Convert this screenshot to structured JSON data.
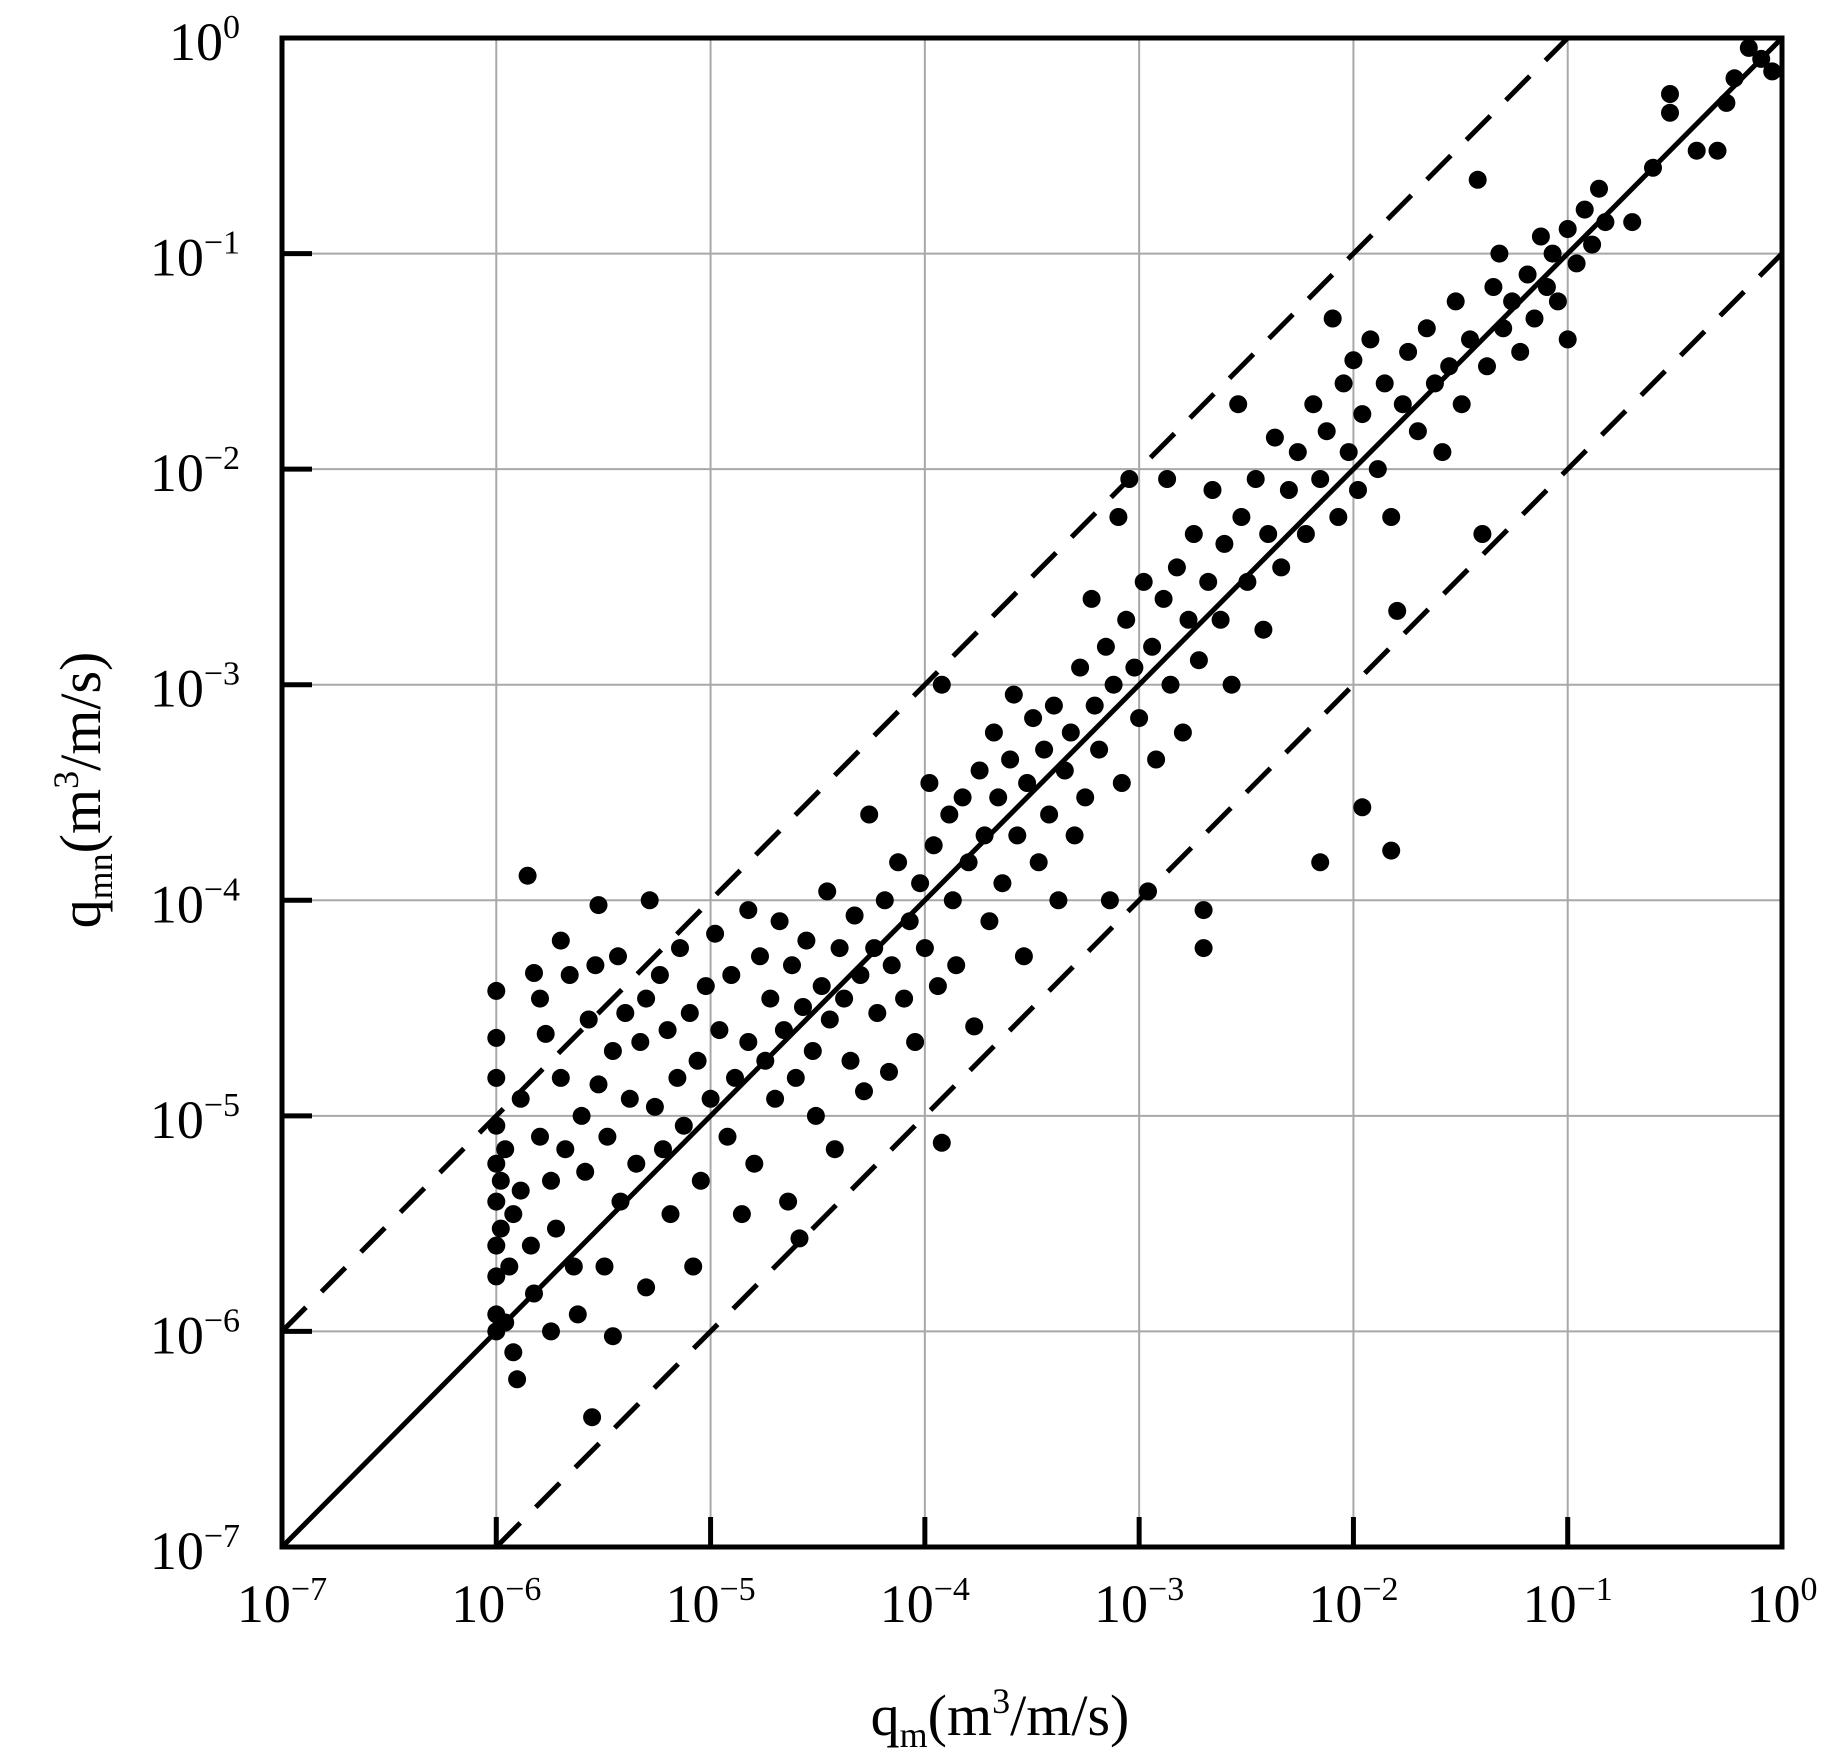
{
  "chart_data": {
    "type": "scatter",
    "title": "",
    "xlabel": {
      "base": "q",
      "subscript": "m",
      "unit_open": "(m",
      "unit_sup": "3",
      "unit_close": "/m/s)"
    },
    "ylabel": {
      "base": "q",
      "subscript": "mn",
      "unit_open": "(m",
      "unit_sup": "3",
      "unit_close": "/m/s)"
    },
    "x_scale": "log",
    "y_scale": "log",
    "xlim": [
      1e-07,
      1
    ],
    "ylim": [
      1e-07,
      1
    ],
    "grid": true,
    "legend": "none",
    "x_ticks": [
      {
        "value": 1e-07,
        "base": "10",
        "exp": "−7"
      },
      {
        "value": 1e-06,
        "base": "10",
        "exp": "−6"
      },
      {
        "value": 1e-05,
        "base": "10",
        "exp": "−5"
      },
      {
        "value": 0.0001,
        "base": "10",
        "exp": "−4"
      },
      {
        "value": 0.001,
        "base": "10",
        "exp": "−3"
      },
      {
        "value": 0.01,
        "base": "10",
        "exp": "−2"
      },
      {
        "value": 0.1,
        "base": "10",
        "exp": "−1"
      },
      {
        "value": 1,
        "base": "10",
        "exp": "0"
      }
    ],
    "y_ticks": [
      {
        "value": 1e-07,
        "base": "10",
        "exp": "−7"
      },
      {
        "value": 1e-06,
        "base": "10",
        "exp": "−6"
      },
      {
        "value": 1e-05,
        "base": "10",
        "exp": "−5"
      },
      {
        "value": 0.0001,
        "base": "10",
        "exp": "−4"
      },
      {
        "value": 0.001,
        "base": "10",
        "exp": "−3"
      },
      {
        "value": 0.01,
        "base": "10",
        "exp": "−2"
      },
      {
        "value": 0.1,
        "base": "10",
        "exp": "−1"
      },
      {
        "value": 1,
        "base": "10",
        "exp": "0"
      }
    ],
    "reference_lines": [
      {
        "style": "solid",
        "relation": "y = x"
      },
      {
        "style": "dashed",
        "relation": "y = 10x"
      },
      {
        "style": "dashed",
        "relation": "y = 0.1x"
      }
    ],
    "series": [
      {
        "marker": "filled-circle",
        "color": "#000000",
        "points": [
          [
            1e-06,
            3.8e-05
          ],
          [
            1e-06,
            2.3e-05
          ],
          [
            1e-06,
            1.5e-05
          ],
          [
            1e-06,
            9e-06
          ],
          [
            1e-06,
            6e-06
          ],
          [
            1e-06,
            4e-06
          ],
          [
            1e-06,
            2.5e-06
          ],
          [
            1e-06,
            1.8e-06
          ],
          [
            1e-06,
            1.2e-06
          ],
          [
            1e-06,
            1e-06
          ],
          [
            1.05e-06,
            3e-06
          ],
          [
            1.05e-06,
            5e-06
          ],
          [
            1.1e-06,
            7e-06
          ],
          [
            1.1e-06,
            1.1e-06
          ],
          [
            1.15e-06,
            2e-06
          ],
          [
            1.2e-06,
            8e-07
          ],
          [
            1.2e-06,
            3.5e-06
          ],
          [
            1.25e-06,
            6e-07
          ],
          [
            1.3e-06,
            1.2e-05
          ],
          [
            1.3e-06,
            4.5e-06
          ],
          [
            1.4e-06,
            0.00013
          ],
          [
            1.45e-06,
            2.5e-06
          ],
          [
            1.5e-06,
            4.6e-05
          ],
          [
            1.5e-06,
            1.5e-06
          ],
          [
            1.6e-06,
            3.5e-05
          ],
          [
            1.6e-06,
            8e-06
          ],
          [
            1.7e-06,
            2.4e-05
          ],
          [
            1.8e-06,
            5e-06
          ],
          [
            1.8e-06,
            1e-06
          ],
          [
            1.9e-06,
            3e-06
          ],
          [
            2e-06,
            6.5e-05
          ],
          [
            2e-06,
            1.5e-05
          ],
          [
            2.1e-06,
            7e-06
          ],
          [
            2.2e-06,
            4.5e-05
          ],
          [
            2.3e-06,
            2e-06
          ],
          [
            2.4e-06,
            1.2e-06
          ],
          [
            2.5e-06,
            1e-05
          ],
          [
            2.6e-06,
            5.5e-06
          ],
          [
            2.7e-06,
            2.8e-05
          ],
          [
            2.8e-06,
            4e-07
          ],
          [
            2.9e-06,
            5e-05
          ],
          [
            3e-06,
            9.5e-05
          ],
          [
            3e-06,
            1.4e-05
          ],
          [
            3.2e-06,
            2e-06
          ],
          [
            3.3e-06,
            8e-06
          ],
          [
            3.5e-06,
            9.5e-07
          ],
          [
            3.5e-06,
            2e-05
          ],
          [
            3.7e-06,
            5.5e-05
          ],
          [
            3.8e-06,
            4e-06
          ],
          [
            4e-06,
            3e-05
          ],
          [
            4.2e-06,
            1.2e-05
          ],
          [
            4.5e-06,
            6e-06
          ],
          [
            4.7e-06,
            2.2e-05
          ],
          [
            5e-06,
            3.5e-05
          ],
          [
            5e-06,
            1.6e-06
          ],
          [
            5.2e-06,
            0.0001
          ],
          [
            5.5e-06,
            1.1e-05
          ],
          [
            5.8e-06,
            4.5e-05
          ],
          [
            6e-06,
            7e-06
          ],
          [
            6.3e-06,
            2.5e-05
          ],
          [
            6.5e-06,
            3.5e-06
          ],
          [
            7e-06,
            1.5e-05
          ],
          [
            7.2e-06,
            6e-05
          ],
          [
            7.5e-06,
            9e-06
          ],
          [
            8e-06,
            3e-05
          ],
          [
            8.3e-06,
            2e-06
          ],
          [
            8.7e-06,
            1.8e-05
          ],
          [
            9e-06,
            5e-06
          ],
          [
            9.5e-06,
            4e-05
          ],
          [
            1e-05,
            1.2e-05
          ],
          [
            1.05e-05,
            7e-05
          ],
          [
            1.1e-05,
            2.5e-05
          ],
          [
            1.2e-05,
            8e-06
          ],
          [
            1.25e-05,
            4.5e-05
          ],
          [
            1.3e-05,
            1.5e-05
          ],
          [
            1.4e-05,
            3.5e-06
          ],
          [
            1.5e-05,
            9e-05
          ],
          [
            1.5e-05,
            2.2e-05
          ],
          [
            1.6e-05,
            6e-06
          ],
          [
            1.7e-05,
            5.5e-05
          ],
          [
            1.8e-05,
            1.8e-05
          ],
          [
            1.9e-05,
            3.5e-05
          ],
          [
            2e-05,
            1.2e-05
          ],
          [
            2.1e-05,
            8e-05
          ],
          [
            2.2e-05,
            2.5e-05
          ],
          [
            2.3e-05,
            4e-06
          ],
          [
            2.4e-05,
            5e-05
          ],
          [
            2.5e-05,
            1.5e-05
          ],
          [
            2.6e-05,
            2.7e-06
          ],
          [
            2.7e-05,
            3.2e-05
          ],
          [
            2.8e-05,
            6.5e-05
          ],
          [
            3e-05,
            2e-05
          ],
          [
            3.1e-05,
            1e-05
          ],
          [
            3.3e-05,
            4e-05
          ],
          [
            3.5e-05,
            0.00011
          ],
          [
            3.6e-05,
            2.8e-05
          ],
          [
            3.8e-05,
            7e-06
          ],
          [
            4e-05,
            6e-05
          ],
          [
            4.2e-05,
            3.5e-05
          ],
          [
            4.5e-05,
            1.8e-05
          ],
          [
            4.7e-05,
            8.5e-05
          ],
          [
            5e-05,
            4.5e-05
          ],
          [
            5.2e-05,
            1.3e-05
          ],
          [
            5.5e-05,
            0.00025
          ],
          [
            5.8e-05,
            6e-05
          ],
          [
            6e-05,
            3e-05
          ],
          [
            6.5e-05,
            0.0001
          ],
          [
            6.8e-05,
            1.6e-05
          ],
          [
            7e-05,
            5e-05
          ],
          [
            7.5e-05,
            0.00015
          ],
          [
            8e-05,
            3.5e-05
          ],
          [
            8.5e-05,
            8e-05
          ],
          [
            9e-05,
            2.2e-05
          ],
          [
            9.5e-05,
            0.00012
          ],
          [
            0.0001,
            6e-05
          ],
          [
            0.000105,
            0.00035
          ],
          [
            0.00011,
            0.00018
          ],
          [
            0.000115,
            4e-05
          ],
          [
            0.00012,
            0.001
          ],
          [
            0.00012,
            7.5e-06
          ],
          [
            0.00013,
            0.00025
          ],
          [
            0.000135,
            0.0001
          ],
          [
            0.00014,
            5e-05
          ],
          [
            0.00015,
            0.0003
          ],
          [
            0.00016,
            0.00015
          ],
          [
            0.00017,
            2.6e-05
          ],
          [
            0.00018,
            0.0004
          ],
          [
            0.00019,
            0.0002
          ],
          [
            0.0002,
            8e-05
          ],
          [
            0.00021,
            0.0006
          ],
          [
            0.00022,
            0.0003
          ],
          [
            0.00023,
            0.00012
          ],
          [
            0.00025,
            0.00045
          ],
          [
            0.00026,
            0.0009
          ],
          [
            0.00027,
            0.0002
          ],
          [
            0.00029,
            5.5e-05
          ],
          [
            0.0003,
            0.00035
          ],
          [
            0.00032,
            0.0007
          ],
          [
            0.00034,
            0.00015
          ],
          [
            0.00036,
            0.0005
          ],
          [
            0.00038,
            0.00025
          ],
          [
            0.0004,
            0.0008
          ],
          [
            0.00042,
            0.0001
          ],
          [
            0.00045,
            0.0004
          ],
          [
            0.00048,
            0.0006
          ],
          [
            0.0005,
            0.0002
          ],
          [
            0.00053,
            0.0012
          ],
          [
            0.00056,
            0.0003
          ],
          [
            0.0006,
            0.0025
          ],
          [
            0.00062,
            0.0008
          ],
          [
            0.00065,
            0.0005
          ],
          [
            0.0007,
            0.0015
          ],
          [
            0.00073,
            0.0001
          ],
          [
            0.00076,
            0.001
          ],
          [
            0.0008,
            0.006
          ],
          [
            0.00083,
            0.00035
          ],
          [
            0.00087,
            0.002
          ],
          [
            0.0009,
            0.009
          ],
          [
            0.00095,
            0.0012
          ],
          [
            0.001,
            0.0007
          ],
          [
            0.00105,
            0.003
          ],
          [
            0.0011,
            0.00011
          ],
          [
            0.00115,
            0.0015
          ],
          [
            0.0012,
            0.00045
          ],
          [
            0.0013,
            0.0025
          ],
          [
            0.00135,
            0.009
          ],
          [
            0.0014,
            0.001
          ],
          [
            0.0015,
            0.0035
          ],
          [
            0.0016,
            0.0006
          ],
          [
            0.0017,
            0.002
          ],
          [
            0.0018,
            0.005
          ],
          [
            0.0019,
            0.0013
          ],
          [
            0.002,
            9e-05
          ],
          [
            0.002,
            6e-05
          ],
          [
            0.0021,
            0.003
          ],
          [
            0.0022,
            0.008
          ],
          [
            0.0024,
            0.002
          ],
          [
            0.0025,
            0.0045
          ],
          [
            0.0027,
            0.001
          ],
          [
            0.0029,
            0.02
          ],
          [
            0.003,
            0.006
          ],
          [
            0.0032,
            0.003
          ],
          [
            0.0035,
            0.009
          ],
          [
            0.0038,
            0.0018
          ],
          [
            0.004,
            0.005
          ],
          [
            0.0043,
            0.014
          ],
          [
            0.0046,
            0.0035
          ],
          [
            0.005,
            0.008
          ],
          [
            0.0055,
            0.012
          ],
          [
            0.006,
            0.005
          ],
          [
            0.0065,
            0.02
          ],
          [
            0.007,
            0.00015
          ],
          [
            0.007,
            0.009
          ],
          [
            0.0075,
            0.015
          ],
          [
            0.008,
            0.05
          ],
          [
            0.0085,
            0.006
          ],
          [
            0.009,
            0.025
          ],
          [
            0.0095,
            0.012
          ],
          [
            0.01,
            0.032
          ],
          [
            0.0105,
            0.008
          ],
          [
            0.011,
            0.00027
          ],
          [
            0.011,
            0.018
          ],
          [
            0.012,
            0.04
          ],
          [
            0.013,
            0.01
          ],
          [
            0.014,
            0.025
          ],
          [
            0.015,
            0.00017
          ],
          [
            0.015,
            0.006
          ],
          [
            0.016,
            0.0022
          ],
          [
            0.017,
            0.02
          ],
          [
            0.018,
            0.035
          ],
          [
            0.02,
            0.015
          ],
          [
            0.022,
            0.045
          ],
          [
            0.024,
            0.025
          ],
          [
            0.026,
            0.012
          ],
          [
            0.028,
            0.03
          ],
          [
            0.03,
            0.06
          ],
          [
            0.032,
            0.02
          ],
          [
            0.035,
            0.04
          ],
          [
            0.038,
            0.22
          ],
          [
            0.04,
            0.005
          ],
          [
            0.042,
            0.03
          ],
          [
            0.045,
            0.07
          ],
          [
            0.048,
            0.1
          ],
          [
            0.05,
            0.045
          ],
          [
            0.055,
            0.06
          ],
          [
            0.06,
            0.035
          ],
          [
            0.065,
            0.08
          ],
          [
            0.07,
            0.05
          ],
          [
            0.075,
            0.12
          ],
          [
            0.08,
            0.07
          ],
          [
            0.085,
            0.1
          ],
          [
            0.09,
            0.06
          ],
          [
            0.1,
            0.04
          ],
          [
            0.1,
            0.13
          ],
          [
            0.11,
            0.09
          ],
          [
            0.12,
            0.16
          ],
          [
            0.13,
            0.11
          ],
          [
            0.14,
            0.2
          ],
          [
            0.15,
            0.14
          ],
          [
            0.2,
            0.14
          ],
          [
            0.25,
            0.25
          ],
          [
            0.3,
            0.55
          ],
          [
            0.3,
            0.45
          ],
          [
            0.4,
            0.3
          ],
          [
            0.5,
            0.3
          ],
          [
            0.55,
            0.5
          ],
          [
            0.6,
            0.65
          ],
          [
            0.7,
            0.9
          ],
          [
            0.8,
            0.8
          ],
          [
            0.9,
            0.7
          ]
        ]
      }
    ]
  }
}
